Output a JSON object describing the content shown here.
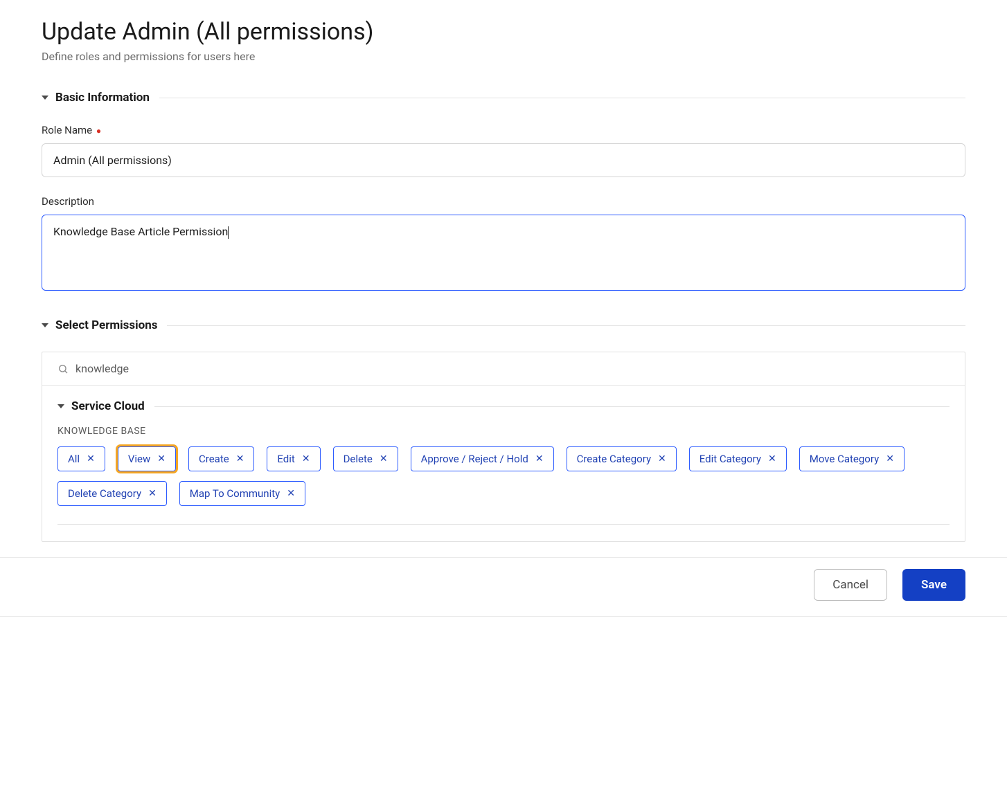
{
  "header": {
    "title": "Update Admin (All permissions)",
    "subtitle": "Define roles and permissions for users here"
  },
  "sections": {
    "basic_info": {
      "heading": "Basic Information",
      "role_name_label": "Role Name",
      "role_name_value": "Admin (All permissions)",
      "description_label": "Description",
      "description_value": "Knowledge Base Article Permission",
      "description_focused": true
    },
    "select_permissions": {
      "heading": "Select Permissions",
      "search_value": "knowledge",
      "group": {
        "label": "Service Cloud",
        "subgroup_label": "KNOWLEDGE BASE",
        "chips": [
          {
            "label": "All",
            "highlighted": false
          },
          {
            "label": "View",
            "highlighted": true
          },
          {
            "label": "Create",
            "highlighted": false
          },
          {
            "label": "Edit",
            "highlighted": false
          },
          {
            "label": "Delete",
            "highlighted": false
          },
          {
            "label": "Approve / Reject / Hold",
            "highlighted": false
          },
          {
            "label": "Create Category",
            "highlighted": false
          },
          {
            "label": "Edit Category",
            "highlighted": false
          },
          {
            "label": "Move Category",
            "highlighted": false
          },
          {
            "label": "Delete Category",
            "highlighted": false
          },
          {
            "label": "Map To Community",
            "highlighted": false
          }
        ]
      }
    }
  },
  "footer": {
    "cancel_label": "Cancel",
    "save_label": "Save"
  },
  "colors": {
    "accent_blue": "#2d5cff",
    "chip_text": "#2142b3",
    "save_bg": "#1440c4",
    "highlight_orange": "#f5a623",
    "required_red": "#d93025",
    "subtitle_gray": "#6e6e6e",
    "border_gray": "#e0e0e0"
  }
}
